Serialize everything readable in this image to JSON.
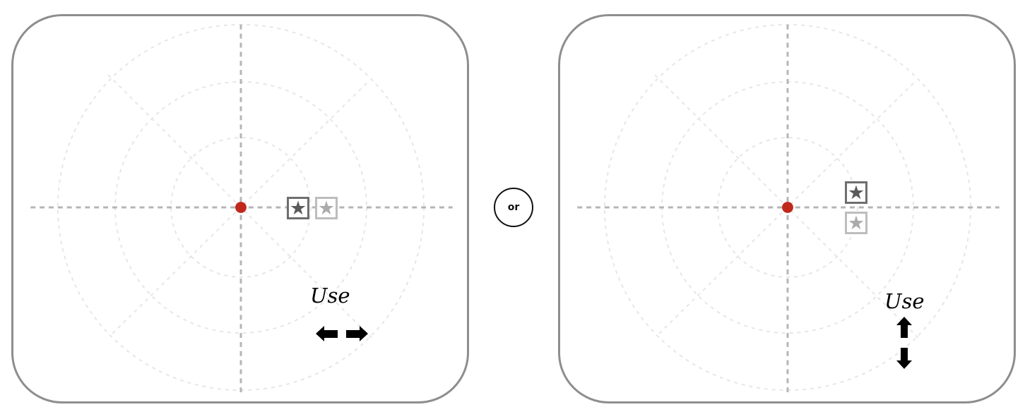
{
  "panels": [
    {
      "id": "horizontal",
      "instruction_label": "Use",
      "arrow_keys": [
        "arrow-left-icon",
        "arrow-right-icon"
      ],
      "fixation_color": "#c0281c"
    },
    {
      "id": "vertical",
      "instruction_label": "Use",
      "arrow_keys": [
        "arrow-up-icon",
        "arrow-down-icon"
      ],
      "fixation_color": "#c0281c"
    }
  ],
  "separator": {
    "label": "or"
  },
  "icons": {
    "star": "★"
  },
  "colors": {
    "frame": "#8e8e8e",
    "axis": "#b5b5b5",
    "guide": "#e6e6e6",
    "fixation": "#c0281c",
    "active_star_box": "#6e6e6e",
    "ghost_star_box": "#bdbdbd"
  }
}
